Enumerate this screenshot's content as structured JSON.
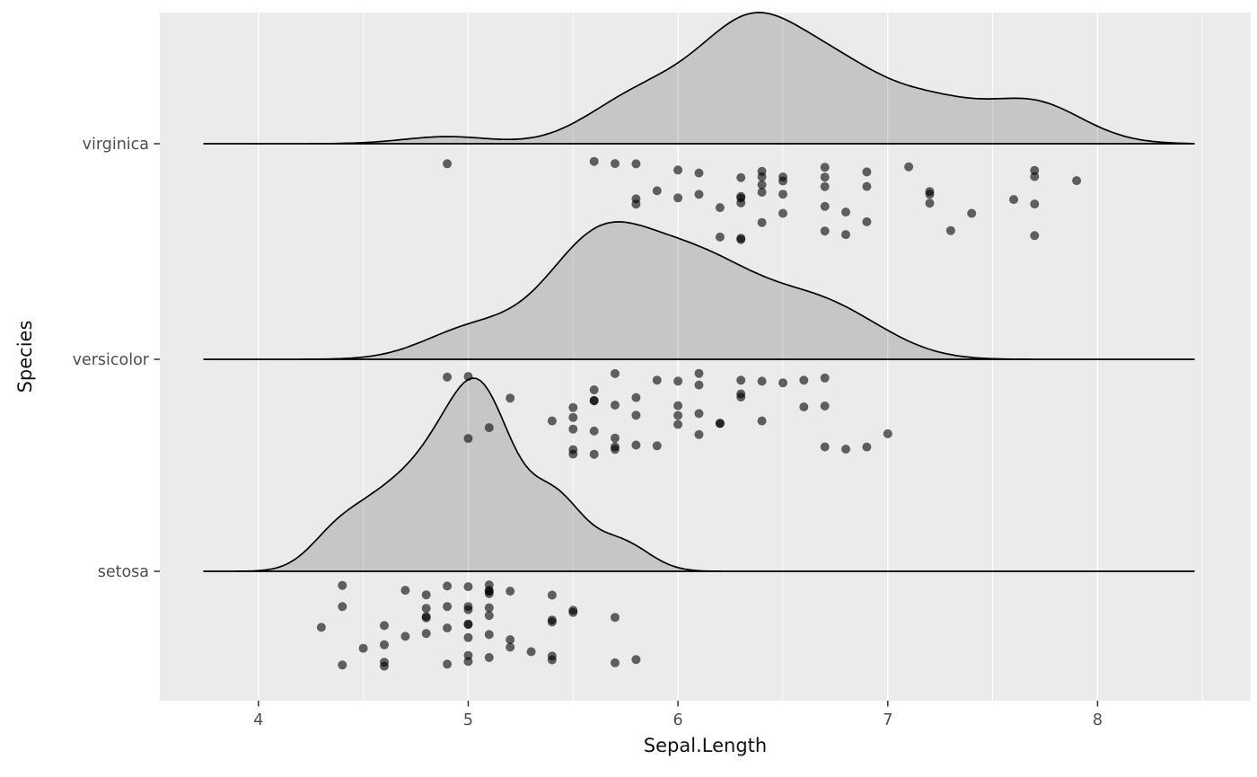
{
  "chart_data": {
    "type": "raincloud",
    "title": "",
    "xlabel": "Sepal.Length",
    "ylabel": "Species",
    "x_ticks": [
      4,
      5,
      6,
      7,
      8
    ],
    "x_minor_ticks": [
      4.5,
      5.5,
      6.5,
      7.5,
      8.5
    ],
    "x_domain": [
      3.53,
      8.73
    ],
    "curve_x_range": [
      3.74,
      8.46
    ],
    "y_categories_bottom_to_top": [
      "setosa",
      "versicolor",
      "virginica"
    ],
    "legend": "none",
    "grid": "on",
    "series": [
      {
        "name": "setosa",
        "values": [
          5.1,
          4.9,
          4.7,
          4.6,
          5.0,
          5.4,
          4.6,
          5.0,
          4.4,
          4.9,
          5.4,
          4.8,
          4.8,
          4.3,
          5.8,
          5.7,
          5.4,
          5.1,
          5.7,
          5.1,
          5.4,
          5.1,
          4.6,
          5.1,
          4.8,
          5.0,
          5.0,
          5.2,
          5.2,
          4.7,
          4.8,
          5.4,
          5.2,
          5.5,
          4.9,
          5.0,
          5.5,
          4.9,
          4.4,
          5.1,
          5.0,
          4.5,
          4.4,
          5.0,
          5.1,
          4.8,
          5.1,
          4.6,
          5.3,
          5.0
        ]
      },
      {
        "name": "versicolor",
        "values": [
          7.0,
          6.4,
          6.9,
          5.5,
          6.5,
          5.7,
          6.3,
          4.9,
          6.6,
          5.2,
          5.0,
          5.9,
          6.0,
          6.1,
          5.6,
          6.7,
          5.6,
          5.8,
          6.2,
          5.6,
          5.9,
          6.1,
          6.3,
          6.1,
          6.4,
          6.6,
          6.8,
          6.7,
          6.0,
          5.7,
          5.5,
          5.5,
          5.8,
          6.0,
          5.4,
          6.0,
          6.7,
          6.3,
          5.6,
          5.5,
          5.5,
          6.1,
          5.8,
          5.0,
          5.6,
          5.7,
          5.7,
          6.2,
          5.1,
          5.7
        ]
      },
      {
        "name": "virginica",
        "values": [
          6.3,
          5.8,
          7.1,
          6.3,
          6.5,
          7.6,
          4.9,
          7.3,
          6.7,
          7.2,
          6.5,
          6.4,
          6.8,
          5.7,
          5.8,
          6.4,
          6.5,
          7.7,
          7.7,
          6.0,
          6.9,
          5.6,
          7.7,
          6.3,
          6.7,
          7.2,
          6.2,
          6.1,
          6.4,
          7.2,
          7.4,
          7.9,
          6.4,
          6.3,
          6.1,
          7.7,
          6.3,
          6.4,
          6.0,
          6.9,
          6.7,
          6.9,
          5.8,
          6.8,
          6.7,
          6.7,
          6.3,
          6.5,
          6.2,
          5.9
        ]
      }
    ],
    "style": {
      "figure_bg": "#FFFFFF",
      "panel_bg": "#EBEBEB",
      "grid_color": "#FFFFFF",
      "curve_stroke": "#000000",
      "density_fill": "rgba(20,20,20,0.17)",
      "point_color": "#000000",
      "point_opacity": 0.6,
      "axis_text_color": "#4D4D4D",
      "axis_title_color": "#111111",
      "tick_mark_color": "#333333"
    }
  }
}
